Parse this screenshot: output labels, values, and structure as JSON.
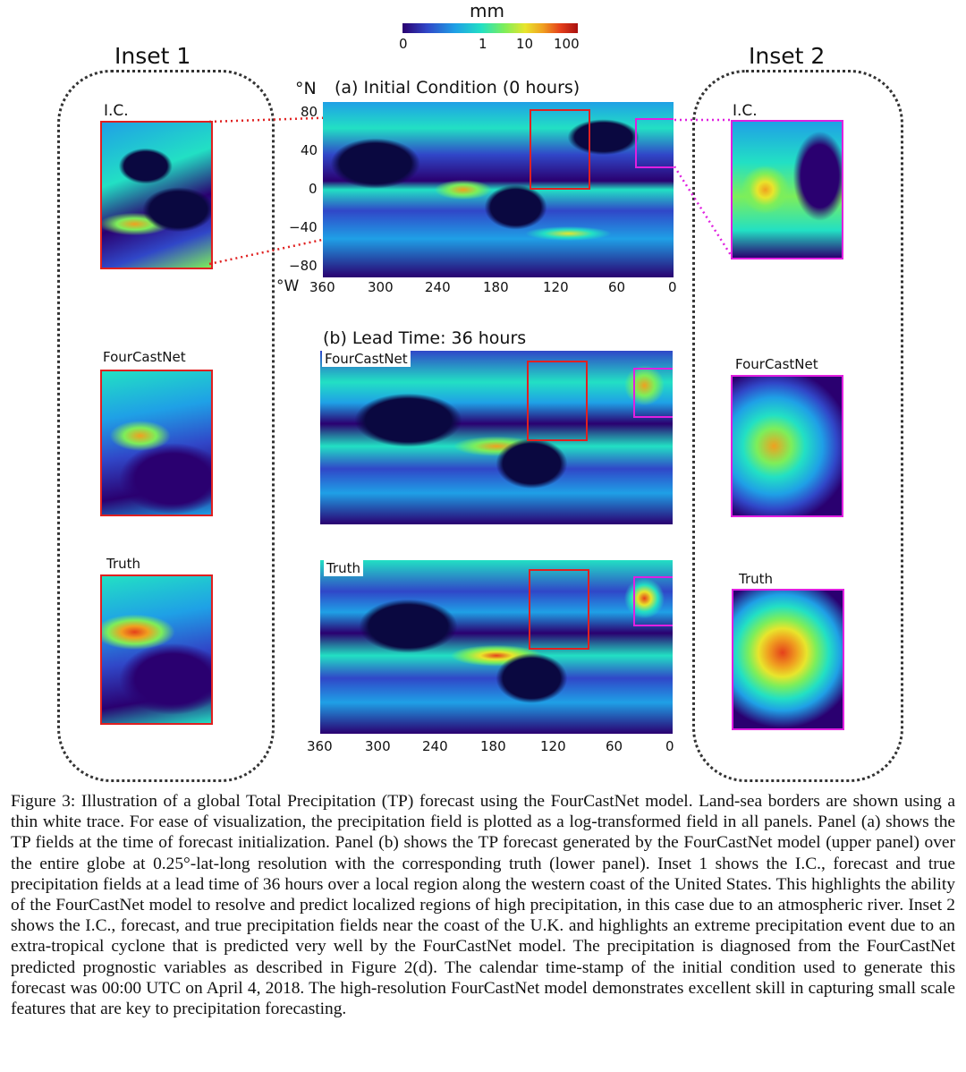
{
  "colorbar": {
    "unit": "mm",
    "tick_labels": [
      "0",
      "1",
      "10",
      "100"
    ],
    "colormap": [
      "#2a0070",
      "#3047c8",
      "#1fa0e6",
      "#22e0c4",
      "#7dee5a",
      "#e8e52c",
      "#f0a020",
      "#e5401b",
      "#a80f0f"
    ]
  },
  "inset1": {
    "title": "Inset 1",
    "labels": {
      "ic": "I.C.",
      "fourcastnet": "FourCastNet",
      "truth": "Truth"
    },
    "border_color": "#e02020"
  },
  "inset2": {
    "title": "Inset 2",
    "labels": {
      "ic": "I.C.",
      "fourcastnet": "FourCastNet",
      "truth": "Truth"
    },
    "border_color": "#e020e0"
  },
  "panel_a": {
    "title": "(a) Initial Condition (0 hours)",
    "lat_unit": "°N",
    "lon_unit": "°W",
    "lat_ticks": [
      "80",
      "40",
      "0",
      "−40",
      "−80"
    ],
    "lon_ticks": [
      "360",
      "300",
      "240",
      "180",
      "120",
      "60",
      "0"
    ]
  },
  "panel_b": {
    "title": "(b) Lead Time: 36 hours",
    "upper_label": "FourCastNet",
    "lower_label": "Truth",
    "lon_ticks": [
      "360",
      "300",
      "240",
      "180",
      "120",
      "60",
      "0"
    ]
  },
  "caption": "Figure 3: Illustration of a global Total Precipitation (TP) forecast using the FourCastNet model. Land-sea borders are shown using a thin white trace. For ease of visualization, the precipitation field is plotted as a log-transformed field in all panels. Panel (a) shows the TP fields at the time of forecast initialization. Panel (b) shows the TP forecast generated by the FourCastNet model (upper panel) over the entire globe at 0.25°-lat-long resolution with the corresponding truth (lower panel). Inset 1 shows the I.C., forecast and true precipitation fields at a lead time of 36 hours over a local region along the western coast of the United States. This highlights the ability of the FourCastNet model to resolve and predict localized regions of high precipitation, in this case due to an atmospheric river. Inset 2 shows the I.C., forecast, and true precipitation fields near the coast of the U.K. and highlights an extreme precipitation event due to an extra-tropical cyclone that is predicted very well by the FourCastNet model. The precipitation is diagnosed from the FourCastNet predicted prognostic variables as described in Figure 2(d). The calendar time-stamp of the initial condition used to generate this forecast was 00:00 UTC on April 4, 2018. The high-resolution FourCastNet model demonstrates excellent skill in capturing small scale features that are key to precipitation forecasting."
}
